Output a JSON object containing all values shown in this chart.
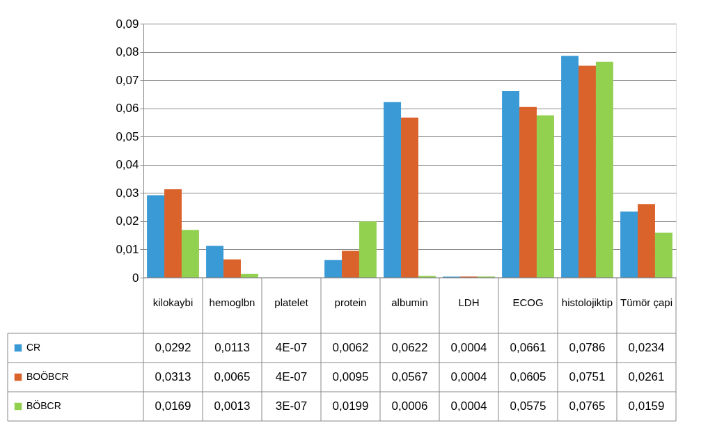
{
  "chart_data": {
    "type": "bar",
    "categories": [
      "kilokaybi",
      "hemoglbn",
      "platelet",
      "protein",
      "albumin",
      "LDH",
      "ECOG",
      "histolojiktip",
      "Tümör çapi"
    ],
    "series": [
      {
        "name": "CR",
        "color": "#3a9ad6",
        "values": [
          0.0292,
          0.0113,
          4e-07,
          0.0062,
          0.0622,
          0.0004,
          0.0661,
          0.0786,
          0.0234
        ],
        "value_labels": [
          "0,0292",
          "0,0113",
          "4E-07",
          "0,0062",
          "0,0622",
          "0,0004",
          "0,0661",
          "0,0786",
          "0,0234"
        ]
      },
      {
        "name": "BOÖBCR",
        "color": "#d9632b",
        "values": [
          0.0313,
          0.0065,
          4e-07,
          0.0095,
          0.0567,
          0.0004,
          0.0605,
          0.0751,
          0.0261
        ],
        "value_labels": [
          "0,0313",
          "0,0065",
          "4E-07",
          "0,0095",
          "0,0567",
          "0,0004",
          "0,0605",
          "0,0751",
          "0,0261"
        ]
      },
      {
        "name": "BÖBCR",
        "color": "#92d050",
        "values": [
          0.0169,
          0.0013,
          3e-07,
          0.0199,
          0.0006,
          0.0004,
          0.0575,
          0.0765,
          0.0159
        ],
        "value_labels": [
          "0,0169",
          "0,0013",
          "3E-07",
          "0,0199",
          "0,0006",
          "0,0004",
          "0,0575",
          "0,0765",
          "0,0159"
        ]
      }
    ],
    "ylim": [
      0,
      0.09
    ],
    "yticks": [
      0,
      {
        "value": 0.01,
        "label": "0,01"
      },
      {
        "value": 0.02,
        "label": "0,02"
      },
      {
        "value": 0.03,
        "label": "0,03"
      },
      {
        "value": 0.04,
        "label": "0,04"
      },
      {
        "value": 0.05,
        "label": "0,05"
      },
      {
        "value": 0.06,
        "label": "0,06"
      },
      {
        "value": 0.07,
        "label": "0,07"
      },
      {
        "value": 0.08,
        "label": "0,08"
      },
      {
        "value": 0.09,
        "label": "0,09"
      }
    ],
    "grid": "y",
    "legend": "bottom"
  }
}
